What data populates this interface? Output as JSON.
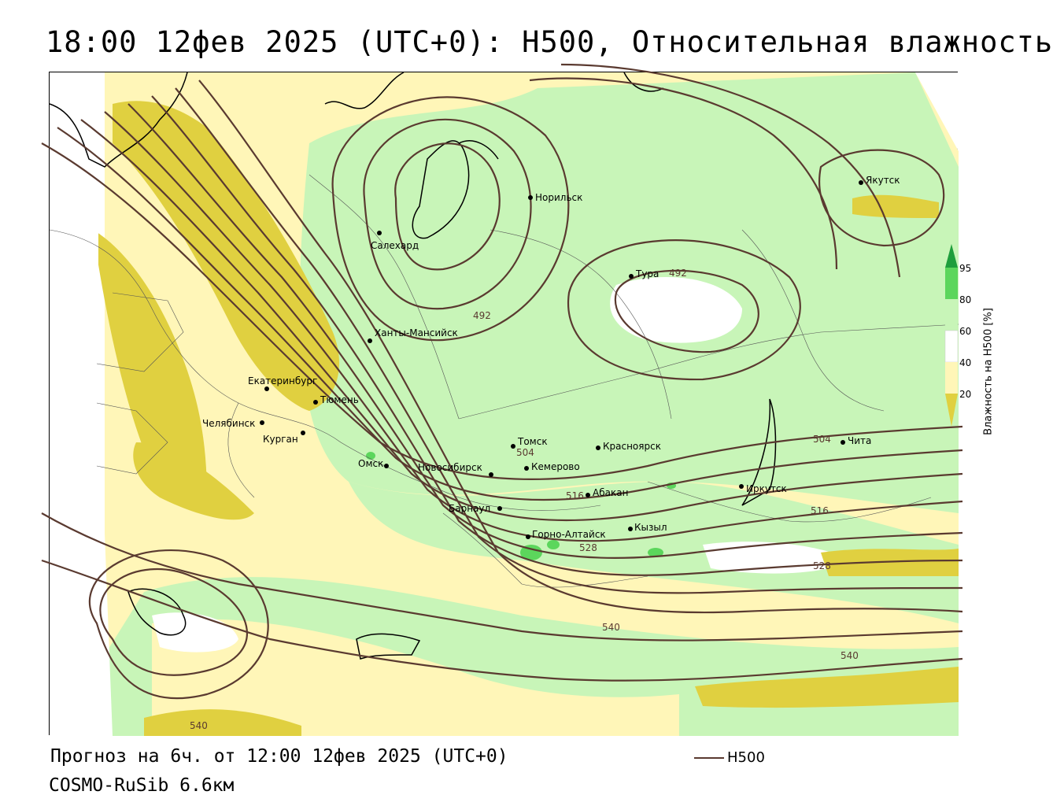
{
  "header": {
    "title": "18:00 12фев 2025 (UTC+0): H500, Относительная влажность"
  },
  "map": {
    "cities": [
      {
        "name": "Норильск"
      },
      {
        "name": "Якутск"
      },
      {
        "name": "Салехард"
      },
      {
        "name": "Тура"
      },
      {
        "name": "Ханты-Мансийск"
      },
      {
        "name": "Екатеринбург"
      },
      {
        "name": "Тюмень"
      },
      {
        "name": "Челябинск"
      },
      {
        "name": "Курган"
      },
      {
        "name": "Омск"
      },
      {
        "name": "Новосибирск"
      },
      {
        "name": "Томск"
      },
      {
        "name": "Кемерово"
      },
      {
        "name": "Красноярск"
      },
      {
        "name": "Барнаул"
      },
      {
        "name": "Абакан"
      },
      {
        "name": "Иркутск"
      },
      {
        "name": "Чита"
      },
      {
        "name": "Кызыл"
      },
      {
        "name": "Горно-Алтайск"
      }
    ],
    "contour_labels": [
      "492",
      "492",
      "504",
      "504",
      "516",
      "516",
      "528",
      "528",
      "540",
      "540",
      "540"
    ],
    "colors": {
      "contour": "#5a3a30",
      "humidity_20_40": "#fff6b8",
      "humidity_lt_20": "#e0d040",
      "humidity_60_80": "#c8f5b8",
      "humidity_80_95": "#5cd65c",
      "humidity_gt_95": "#1e9e3c"
    }
  },
  "legend": {
    "ticks": [
      "95",
      "80",
      "60",
      "40",
      "20"
    ],
    "axis_label": "Влажность на H500 [%]"
  },
  "footer": {
    "forecast": "Прогноз на 6ч. от 12:00 12фев 2025 (UTC+0)",
    "model": "COSMO-RuSib 6.6км",
    "line_legend_label": "H500"
  }
}
